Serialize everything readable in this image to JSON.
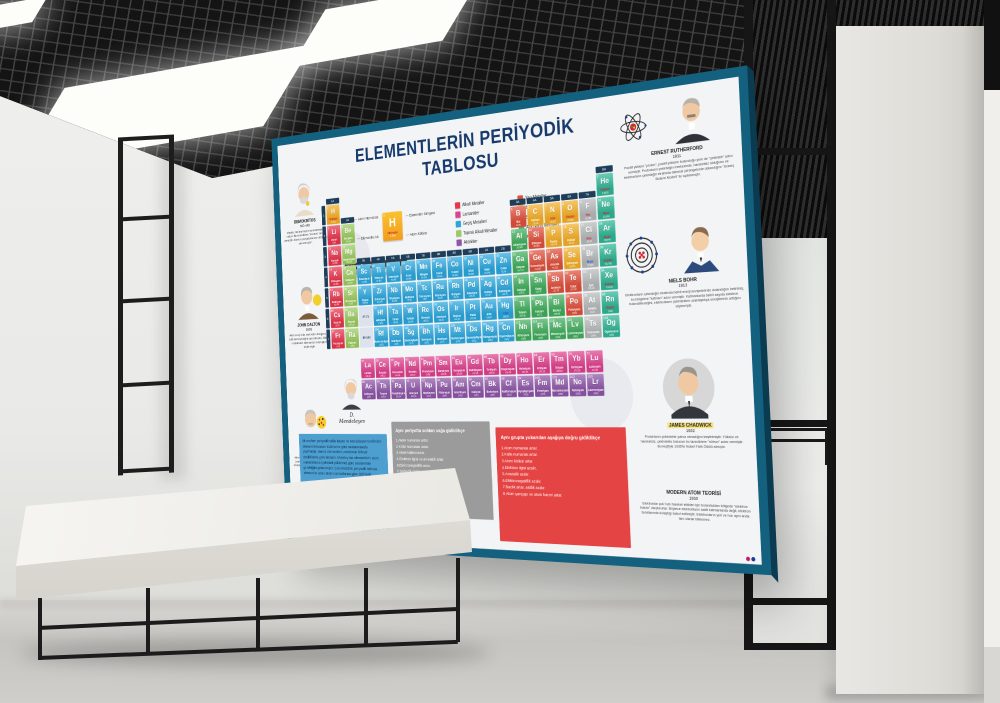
{
  "poster": {
    "title": "ELEMENTLERİN PERİYODİK TABLOSU",
    "group_labels": [
      "1A",
      "2A",
      "3B",
      "4B",
      "5B",
      "6B",
      "7B",
      "8B",
      "8B",
      "8B",
      "1B",
      "2B",
      "3A",
      "4A",
      "5A",
      "6A",
      "7A",
      "8A"
    ],
    "period_labels": [
      "1",
      "2",
      "3",
      "4",
      "5",
      "6",
      "7"
    ],
    "f_markers": [
      "57-71",
      "89-103"
    ],
    "category_colors": {
      "alk": "#e8354d",
      "top": "#9ccb5f",
      "gec": "#2ba7dd",
      "ara": "#41ad5c",
      "yar": "#e0503c",
      "ame": "#f3ae27",
      "hal": "#b6b9bb",
      "soy": "#2fb596",
      "lan": "#e0418e",
      "akt": "#8e55a8"
    },
    "state_colors": {
      "g": "#d81f2f",
      "l": "#1d4fd7",
      "s": "#ffffff",
      "y": "#ffffff"
    },
    "legend": {
      "left": [
        {
          "label": "Alkali Metaller",
          "cat": "alk"
        },
        {
          "label": "Lantanitler",
          "cat": "lan"
        },
        {
          "label": "Geçiş Metalleri",
          "cat": "gec"
        },
        {
          "label": "Toprak Alkali Metaller",
          "cat": "top"
        },
        {
          "label": "Aktinitler",
          "cat": "akt"
        }
      ],
      "right": [
        {
          "label": "Yarı Metaller",
          "cat": "yar"
        },
        {
          "label": "Ametaller",
          "cat": "ame"
        },
        {
          "label": "Soygazlar",
          "cat": "soy"
        },
        {
          "label": "Ara Geçiş Metalleri",
          "cat": "ara"
        },
        {
          "label": "Halojenler",
          "cat": "hal"
        }
      ]
    },
    "sample": {
      "num": "1",
      "sym": "H",
      "name": "Hidrojen",
      "mass": "1,008",
      "labels": {
        "num": "Atom Numarası",
        "sym": "Elementin Simgesi",
        "name": "Elementin Adı",
        "mass": "Atom Kütlesi"
      }
    },
    "state_box": {
      "title": "Maddenin Durumu",
      "items": [
        {
          "label": "GAZ",
          "color": "#e8192c"
        },
        {
          "label": "SIVI",
          "color": "#2e6fd8"
        },
        {
          "label": "KATI",
          "color": "#1a1a1a"
        },
        {
          "label": "ELEMENTLER",
          "color": "#ffffff"
        }
      ]
    },
    "left_scientists": [
      {
        "name": "DEMOKRİTOS",
        "year": "MÖ 440",
        "text": "Madde, bölünemeyen taneciklerden oluşur. Bu taneciklere \"atomos\" adını vermiştir. Atomun parçalanamaz olduğunu savunmuştur."
      },
      {
        "name": "JOHN DALTON",
        "year": "1803",
        "text": "Atomun içi dolu berk küre olduğunu ve bölünemeyeceğini savunmuştur. Bütün maddelerin atomlardan oluştuğunu söylemiştir."
      },
      {
        "name": "J.J.THOMSON",
        "year": "1897",
        "text": "Atomun içinde negatif yüklü tanecikler (elektronlar) bulunduğunu keşfetmiş, atomu üzümlü keke benzeyen bir model ile açıklamıştır."
      }
    ],
    "mendeleev": {
      "signature": "D. Mendeleyev"
    },
    "right_scientists": [
      {
        "name": "ERNEST RUTHERFORD",
        "year": "1911",
        "text": "Pozitif yüklere \"proton\", pozitif yüklerin bulunduğu yere de \"çekirdek\" adını vermiştir. Protonların çekirdeğin merkezinde, hareketsiz olduğunu ve elektronların çekirdeğin etrafında dairesel yörüngelerde dolandığını \"Güneş Sistemi Modeli\" ile açıklamıştır."
      },
      {
        "name": "NIELS BOHR",
        "year": "1913",
        "text": "Elektronların çekirdeğin etrafında belirli enerji seviyelerinde dolandığını belirtmiş, bu bölgelere \"katman\" adını vermiştir. Katmanlarda belirli sayıda elektron bulunabileceğini, elektronların çekirdekten uzaklaştıkça enerjilerinin arttığını söylemiştir."
      },
      {
        "name": "JAMES CHADWICK",
        "year": "1932",
        "text": "Protonların çekirdekte yalnız olmadığını keşfetmiştir. Yüksüz ve hareketsiz, çekirdekte bulunan bu taneciklere \"nötron\" adını vermiştir. Bu keşfiyle 1935'te Nobel Fizik Ödülü almıştır."
      },
      {
        "name": "MODERN ATOM TEORİSİ",
        "year": "1930",
        "text": "Elektronlar çok hızlı hareket ettikleri için bulundukları bölgede \"elektron bulutu\" oluştururlar. Böylece elektronların sabit katmanlarda değil, elektron bulutlarında dolaştığı kabul edilmiştir. Elektronların yeri ve hızı aynı anda tam olarak bilinemez."
      }
    ],
    "history_note": "İlk modern periyodik tablo Meyer ve Mendeleyev tarafından elementlerin atom kütlelerine göre sıralanmasıyla yapılmıştır. Henüz elementleri, cetvelinde fiziksel özelliklerine göre sıraladı. Moseley ise elementlerin atom numaralarına (çekirdek yüklerine) göre sıralanması gerektiğini göstermiştir. Günümüzdeki periyodik tabloda elementler artan atom numaralarına göre dizilmiştir.",
    "period_trend": {
      "title": "Aynı periyotta soldan sağa gidildikçe",
      "items": [
        "1.Atom numarası artar.",
        "2.Kütle numarası artar.",
        "3.Atom kütlesi artar.",
        "4.Elektron ilgisi ve ametalik artar.",
        "5.Elektronegatiflik artar.",
        "6.Değerlik elektron sayısı artar.",
        "7.Asitlik özelliği artar, bazlık azalır."
      ]
    },
    "group_trend": {
      "title": "Aynı grupta yukarıdan aşağıya  doğru gidildikçe",
      "items": [
        "1.Atom numarası artar.",
        "2.Kütle numarası artar.",
        "3.Atom kütlesi artar.",
        "4.Elektron ilgisi azalır.",
        "5.Ametalik azalır.",
        "6.Elektronegatiflik azalır.",
        "7.Bazlık artar, asitlik azalır.",
        "8.Atom yarıçapı ve atom hacmi artar."
      ]
    },
    "elements": [
      [
        1,
        "H",
        "Hidrojen",
        "1,008",
        "ame",
        "g"
      ],
      [
        2,
        "He",
        "Helyum",
        "4,0026",
        "soy",
        "g"
      ],
      [
        3,
        "Li",
        "Lityum",
        "6,94",
        "alk",
        "s"
      ],
      [
        4,
        "Be",
        "Berilyum",
        "9,0122",
        "top",
        "s"
      ],
      [
        5,
        "B",
        "Bor",
        "10,81",
        "yar",
        "s"
      ],
      [
        6,
        "C",
        "Karbon",
        "12,011",
        "ame",
        "s"
      ],
      [
        7,
        "N",
        "Azot",
        "14,007",
        "ame",
        "g"
      ],
      [
        8,
        "O",
        "Oksijen",
        "15,999",
        "ame",
        "g"
      ],
      [
        9,
        "F",
        "Flor",
        "18,998",
        "hal",
        "g"
      ],
      [
        10,
        "Ne",
        "Neon",
        "20,180",
        "soy",
        "g"
      ],
      [
        11,
        "Na",
        "Sodyum",
        "22,990",
        "alk",
        "s"
      ],
      [
        12,
        "Mg",
        "Magnezyum",
        "24,305",
        "top",
        "s"
      ],
      [
        13,
        "Al",
        "Alüminyum",
        "26,982",
        "ara",
        "s"
      ],
      [
        14,
        "Si",
        "Silisyum",
        "28,085",
        "yar",
        "s"
      ],
      [
        15,
        "P",
        "Fosfor",
        "30,974",
        "ame",
        "s"
      ],
      [
        16,
        "S",
        "Kükürt",
        "32,06",
        "ame",
        "s"
      ],
      [
        17,
        "Cl",
        "Klor",
        "35,45",
        "hal",
        "g"
      ],
      [
        18,
        "Ar",
        "Argon",
        "39,948",
        "soy",
        "g"
      ],
      [
        19,
        "K",
        "Potasyum",
        "39,098",
        "alk",
        "s"
      ],
      [
        20,
        "Ca",
        "Kalsiyum",
        "40,078",
        "top",
        "s"
      ],
      [
        21,
        "Sc",
        "Skandiyum",
        "44,956",
        "gec",
        "s"
      ],
      [
        22,
        "Ti",
        "Titanyum",
        "47,867",
        "gec",
        "s"
      ],
      [
        23,
        "V",
        "Vanadyum",
        "50,942",
        "gec",
        "s"
      ],
      [
        24,
        "Cr",
        "Krom",
        "51,996",
        "gec",
        "s"
      ],
      [
        25,
        "Mn",
        "Mangan",
        "54,938",
        "gec",
        "s"
      ],
      [
        26,
        "Fe",
        "Demir",
        "55,845",
        "gec",
        "s"
      ],
      [
        27,
        "Co",
        "Kobalt",
        "58,933",
        "gec",
        "s"
      ],
      [
        28,
        "Ni",
        "Nikel",
        "58,693",
        "gec",
        "s"
      ],
      [
        29,
        "Cu",
        "Bakır",
        "63,546",
        "gec",
        "s"
      ],
      [
        30,
        "Zn",
        "Çinko",
        "65,38",
        "gec",
        "s"
      ],
      [
        31,
        "Ga",
        "Galyum",
        "69,723",
        "ara",
        "s"
      ],
      [
        32,
        "Ge",
        "Germanyum",
        "72,630",
        "yar",
        "s"
      ],
      [
        33,
        "As",
        "Arsenik",
        "74,922",
        "yar",
        "s"
      ],
      [
        34,
        "Se",
        "Selenyum",
        "78,971",
        "ame",
        "s"
      ],
      [
        35,
        "Br",
        "Brom",
        "79,904",
        "hal",
        "l"
      ],
      [
        36,
        "Kr",
        "Kripton",
        "83,798",
        "soy",
        "g"
      ],
      [
        37,
        "Rb",
        "Rubidyum",
        "85,468",
        "alk",
        "s"
      ],
      [
        38,
        "Sr",
        "Stronsiyum",
        "87,62",
        "top",
        "s"
      ],
      [
        39,
        "Y",
        "İtriyum",
        "88,906",
        "gec",
        "s"
      ],
      [
        40,
        "Zr",
        "Zirkonyum",
        "91,224",
        "gec",
        "s"
      ],
      [
        41,
        "Nb",
        "Niyobyum",
        "92,906",
        "gec",
        "s"
      ],
      [
        42,
        "Mo",
        "Molibden",
        "95,95",
        "gec",
        "s"
      ],
      [
        43,
        "Tc",
        "Teknesyum",
        "(98)",
        "gec",
        "y"
      ],
      [
        44,
        "Ru",
        "Rutenyum",
        "101,07",
        "gec",
        "s"
      ],
      [
        45,
        "Rh",
        "Rodyum",
        "102,91",
        "gec",
        "s"
      ],
      [
        46,
        "Pd",
        "Paladyum",
        "106,42",
        "gec",
        "s"
      ],
      [
        47,
        "Ag",
        "Gümüş",
        "107,87",
        "gec",
        "s"
      ],
      [
        48,
        "Cd",
        "Kadmiyum",
        "112,41",
        "gec",
        "s"
      ],
      [
        49,
        "In",
        "İndiyum",
        "114,82",
        "ara",
        "s"
      ],
      [
        50,
        "Sn",
        "Kalay",
        "118,71",
        "ara",
        "s"
      ],
      [
        51,
        "Sb",
        "Antimon",
        "121,76",
        "yar",
        "s"
      ],
      [
        52,
        "Te",
        "Tellür",
        "127,60",
        "yar",
        "s"
      ],
      [
        53,
        "I",
        "İyot",
        "126,90",
        "hal",
        "s"
      ],
      [
        54,
        "Xe",
        "Ksenon",
        "131,29",
        "soy",
        "g"
      ],
      [
        55,
        "Cs",
        "Sezyum",
        "132,91",
        "alk",
        "s"
      ],
      [
        56,
        "Ba",
        "Baryum",
        "137,33",
        "top",
        "s"
      ],
      [
        57,
        "La",
        "Lantan",
        "138,91",
        "lan",
        "s"
      ],
      [
        58,
        "Ce",
        "Seryum",
        "140,12",
        "lan",
        "s"
      ],
      [
        59,
        "Pr",
        "Praseodim",
        "140,91",
        "lan",
        "s"
      ],
      [
        60,
        "Nd",
        "Neodim",
        "144,24",
        "lan",
        "s"
      ],
      [
        61,
        "Pm",
        "Prometyum",
        "(145)",
        "lan",
        "y"
      ],
      [
        62,
        "Sm",
        "Samaryum",
        "150,36",
        "lan",
        "s"
      ],
      [
        63,
        "Eu",
        "Evropiyum",
        "151,96",
        "lan",
        "s"
      ],
      [
        64,
        "Gd",
        "Gadolinyum",
        "157,25",
        "lan",
        "s"
      ],
      [
        65,
        "Tb",
        "Terbiyum",
        "158,93",
        "lan",
        "s"
      ],
      [
        66,
        "Dy",
        "Disprosyum",
        "162,50",
        "lan",
        "s"
      ],
      [
        67,
        "Ho",
        "Holmiyum",
        "164,93",
        "lan",
        "s"
      ],
      [
        68,
        "Er",
        "Erbiyum",
        "167,26",
        "lan",
        "s"
      ],
      [
        69,
        "Tm",
        "Tulyum",
        "168,93",
        "lan",
        "s"
      ],
      [
        70,
        "Yb",
        "İterbiyum",
        "173,05",
        "lan",
        "s"
      ],
      [
        71,
        "Lu",
        "Lutesyum",
        "174,97",
        "lan",
        "s"
      ],
      [
        72,
        "Hf",
        "Hafniyum",
        "178,49",
        "gec",
        "s"
      ],
      [
        73,
        "Ta",
        "Tantal",
        "180,95",
        "gec",
        "s"
      ],
      [
        74,
        "W",
        "Volfram",
        "183,84",
        "gec",
        "s"
      ],
      [
        75,
        "Re",
        "Renyum",
        "186,21",
        "gec",
        "s"
      ],
      [
        76,
        "Os",
        "Osmiyum",
        "190,23",
        "gec",
        "s"
      ],
      [
        77,
        "Ir",
        "İridyum",
        "192,22",
        "gec",
        "s"
      ],
      [
        78,
        "Pt",
        "Platin",
        "195,08",
        "gec",
        "s"
      ],
      [
        79,
        "Au",
        "Altın",
        "196,97",
        "gec",
        "s"
      ],
      [
        80,
        "Hg",
        "Cıva",
        "200,59",
        "gec",
        "l"
      ],
      [
        81,
        "Tl",
        "Talyum",
        "204,38",
        "ara",
        "s"
      ],
      [
        82,
        "Pb",
        "Kurşun",
        "207,2",
        "ara",
        "s"
      ],
      [
        83,
        "Bi",
        "Bizmut",
        "208,98",
        "ara",
        "s"
      ],
      [
        84,
        "Po",
        "Polonyum",
        "(209)",
        "yar",
        "s"
      ],
      [
        85,
        "At",
        "Astatin",
        "(210)",
        "hal",
        "s"
      ],
      [
        86,
        "Rn",
        "Radon",
        "(222)",
        "soy",
        "g"
      ],
      [
        87,
        "Fr",
        "Fransiyum",
        "(223)",
        "alk",
        "s"
      ],
      [
        88,
        "Ra",
        "Radyum",
        "(226)",
        "top",
        "s"
      ],
      [
        89,
        "Ac",
        "Aktinyum",
        "(227)",
        "akt",
        "s"
      ],
      [
        90,
        "Th",
        "Toryum",
        "232,04",
        "akt",
        "s"
      ],
      [
        91,
        "Pa",
        "Protaktinyum",
        "231,04",
        "akt",
        "s"
      ],
      [
        92,
        "U",
        "Uranyum",
        "238,03",
        "akt",
        "s"
      ],
      [
        93,
        "Np",
        "Neptünyum",
        "(237)",
        "akt",
        "y"
      ],
      [
        94,
        "Pu",
        "Plütonyum",
        "(244)",
        "akt",
        "y"
      ],
      [
        95,
        "Am",
        "Amerikyum",
        "(243)",
        "akt",
        "y"
      ],
      [
        96,
        "Cm",
        "Küriyum",
        "(247)",
        "akt",
        "y"
      ],
      [
        97,
        "Bk",
        "Berkelyum",
        "(247)",
        "akt",
        "y"
      ],
      [
        98,
        "Cf",
        "Kaliforniyum",
        "(251)",
        "akt",
        "y"
      ],
      [
        99,
        "Es",
        "Aynştaynyum",
        "(252)",
        "akt",
        "y"
      ],
      [
        100,
        "Fm",
        "Fermiyum",
        "(257)",
        "akt",
        "y"
      ],
      [
        101,
        "Md",
        "Mendelevyum",
        "(258)",
        "akt",
        "y"
      ],
      [
        102,
        "No",
        "Nobelyum",
        "(259)",
        "akt",
        "y"
      ],
      [
        103,
        "Lr",
        "Lavrensiyum",
        "(262)",
        "akt",
        "y"
      ],
      [
        104,
        "Rf",
        "Rutherfordyum",
        "(267)",
        "gec",
        "y"
      ],
      [
        105,
        "Db",
        "Dubniyum",
        "(270)",
        "gec",
        "y"
      ],
      [
        106,
        "Sg",
        "Seaborgiyum",
        "(271)",
        "gec",
        "y"
      ],
      [
        107,
        "Bh",
        "Bohriyum",
        "(270)",
        "gec",
        "y"
      ],
      [
        108,
        "Hs",
        "Hassiyum",
        "(277)",
        "gec",
        "y"
      ],
      [
        109,
        "Mt",
        "Meitneriyum",
        "(278)",
        "gec",
        "y"
      ],
      [
        110,
        "Ds",
        "Darmstadtiyum",
        "(281)",
        "gec",
        "y"
      ],
      [
        111,
        "Rg",
        "Röntgenyum",
        "(282)",
        "gec",
        "y"
      ],
      [
        112,
        "Cn",
        "Kopernikyum",
        "(285)",
        "gec",
        "y"
      ],
      [
        113,
        "Nh",
        "Nihonyum",
        "(286)",
        "ara",
        "y"
      ],
      [
        114,
        "Fl",
        "Flerovyum",
        "(289)",
        "ara",
        "y"
      ],
      [
        115,
        "Mc",
        "Moskovyum",
        "(290)",
        "ara",
        "y"
      ],
      [
        116,
        "Lv",
        "Livermoryum",
        "(293)",
        "ara",
        "y"
      ],
      [
        117,
        "Ts",
        "Tennessin",
        "(294)",
        "hal",
        "y"
      ],
      [
        118,
        "Og",
        "Oganesson",
        "(294)",
        "soy",
        "y"
      ]
    ]
  }
}
